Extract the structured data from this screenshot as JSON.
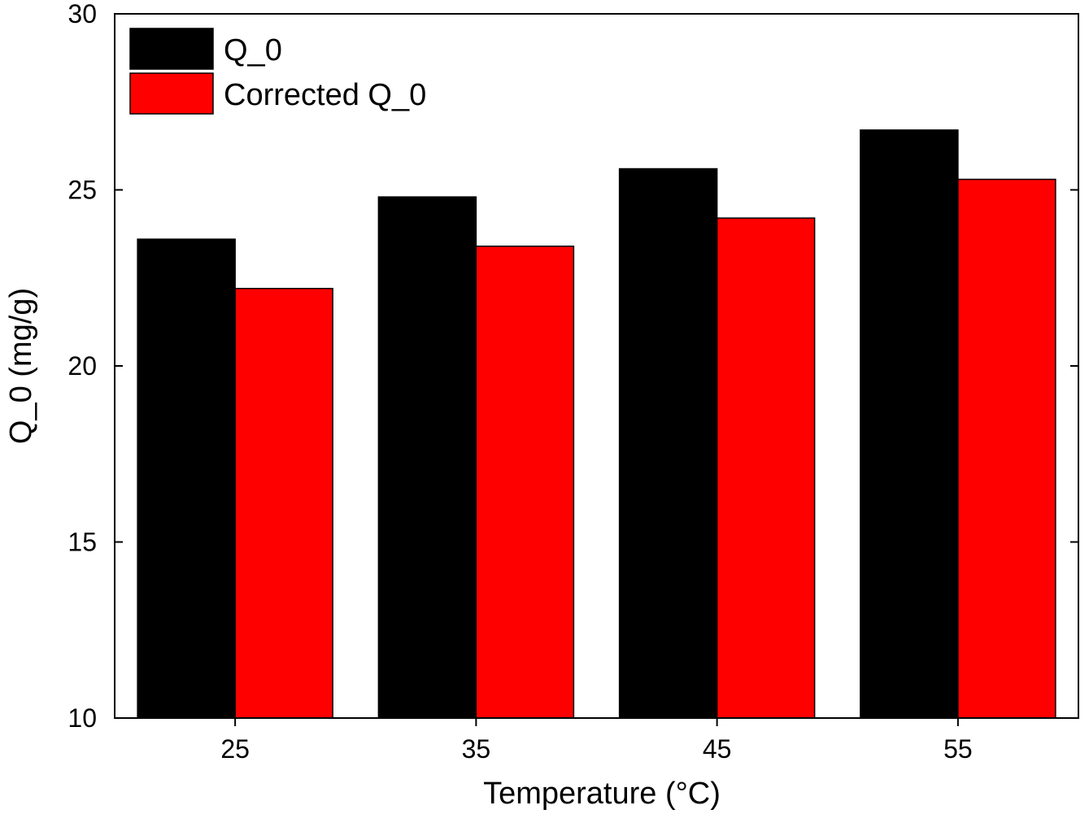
{
  "chart_data": {
    "type": "bar",
    "xlabel": "Temperature (°C)",
    "ylabel": "Q_0 (mg/g)",
    "ylim": [
      10,
      30
    ],
    "yticks": [
      10,
      15,
      20,
      25,
      30
    ],
    "categories": [
      "25",
      "35",
      "45",
      "55"
    ],
    "series": [
      {
        "name": "Q_0",
        "color": "#000000",
        "values": [
          23.6,
          24.8,
          25.6,
          26.7
        ]
      },
      {
        "name": "Corrected Q_0",
        "color": "#ff0000",
        "values": [
          22.2,
          23.4,
          24.2,
          25.3
        ]
      }
    ],
    "legend": "top-left",
    "grid": false
  }
}
